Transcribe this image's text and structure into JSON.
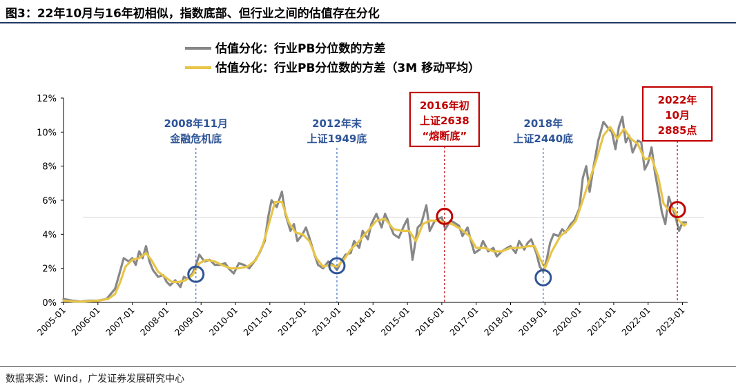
{
  "figure": {
    "title": "图3：22年10月与16年初相似，指数底部、但行业之间的估值存在分化",
    "source": "数据来源：Wind，广发证券发展研究中心"
  },
  "colors": {
    "series_raw": "#878787",
    "series_ma": "#e8c547",
    "guide_blue": "#4472c4",
    "label_blue": "#2e5597",
    "highlight_red": "#c00000",
    "reference_line": "#d9d9d9"
  },
  "chart_data": {
    "type": "line",
    "ylim": [
      0,
      12
    ],
    "y_ticks": [
      "0%",
      "2%",
      "4%",
      "6%",
      "8%",
      "10%",
      "12%"
    ],
    "x_ticks": [
      "2005-01",
      "2006-01",
      "2007-01",
      "2008-01",
      "2009-01",
      "2010-01",
      "2011-01",
      "2012-01",
      "2013-01",
      "2014-01",
      "2015-01",
      "2016-01",
      "2017-01",
      "2018-01",
      "2019-01",
      "2020-01",
      "2021-01",
      "2022-01",
      "2023-01"
    ],
    "xlim": [
      2005.0,
      2023.15
    ],
    "legend_position": "top-center",
    "grid": false,
    "reference_y": 5.0,
    "series": [
      {
        "name": "估值分化：行业PB分位数的方差",
        "key": "raw",
        "points": [
          [
            2005.0,
            0.2
          ],
          [
            2005.25,
            0.1
          ],
          [
            2005.5,
            0.05
          ],
          [
            2005.75,
            0.1
          ],
          [
            2006.0,
            0.1
          ],
          [
            2006.25,
            0.2
          ],
          [
            2006.5,
            0.8
          ],
          [
            2006.6,
            1.5
          ],
          [
            2006.75,
            2.6
          ],
          [
            2006.9,
            2.4
          ],
          [
            2007.0,
            2.6
          ],
          [
            2007.1,
            2.2
          ],
          [
            2007.2,
            3.0
          ],
          [
            2007.3,
            2.6
          ],
          [
            2007.4,
            3.3
          ],
          [
            2007.5,
            2.4
          ],
          [
            2007.6,
            1.9
          ],
          [
            2007.75,
            1.5
          ],
          [
            2007.9,
            1.6
          ],
          [
            2008.0,
            1.2
          ],
          [
            2008.1,
            1.0
          ],
          [
            2008.25,
            1.3
          ],
          [
            2008.4,
            0.9
          ],
          [
            2008.5,
            1.5
          ],
          [
            2008.6,
            1.4
          ],
          [
            2008.75,
            1.7
          ],
          [
            2008.85,
            2.2
          ],
          [
            2008.95,
            2.8
          ],
          [
            2009.1,
            2.4
          ],
          [
            2009.25,
            2.5
          ],
          [
            2009.4,
            2.2
          ],
          [
            2009.55,
            2.2
          ],
          [
            2009.7,
            2.3
          ],
          [
            2009.8,
            2.0
          ],
          [
            2009.95,
            1.7
          ],
          [
            2010.1,
            2.3
          ],
          [
            2010.25,
            2.2
          ],
          [
            2010.4,
            2.0
          ],
          [
            2010.55,
            2.4
          ],
          [
            2010.7,
            2.9
          ],
          [
            2010.85,
            3.6
          ],
          [
            2010.95,
            5.0
          ],
          [
            2011.05,
            6.0
          ],
          [
            2011.2,
            5.6
          ],
          [
            2011.35,
            6.5
          ],
          [
            2011.45,
            5.2
          ],
          [
            2011.6,
            4.2
          ],
          [
            2011.7,
            4.6
          ],
          [
            2011.8,
            3.6
          ],
          [
            2011.95,
            4.0
          ],
          [
            2012.05,
            4.4
          ],
          [
            2012.15,
            3.8
          ],
          [
            2012.3,
            2.8
          ],
          [
            2012.4,
            2.2
          ],
          [
            2012.55,
            2.0
          ],
          [
            2012.7,
            2.4
          ],
          [
            2012.85,
            2.2
          ],
          [
            2012.95,
            1.9
          ],
          [
            2013.05,
            2.3
          ],
          [
            2013.2,
            2.8
          ],
          [
            2013.35,
            2.9
          ],
          [
            2013.45,
            3.6
          ],
          [
            2013.6,
            3.2
          ],
          [
            2013.7,
            4.2
          ],
          [
            2013.85,
            3.7
          ],
          [
            2013.95,
            4.6
          ],
          [
            2014.1,
            5.2
          ],
          [
            2014.25,
            4.4
          ],
          [
            2014.35,
            5.2
          ],
          [
            2014.5,
            4.5
          ],
          [
            2014.6,
            4.0
          ],
          [
            2014.75,
            3.8
          ],
          [
            2014.9,
            4.5
          ],
          [
            2015.0,
            4.9
          ],
          [
            2015.1,
            3.4
          ],
          [
            2015.15,
            2.5
          ],
          [
            2015.3,
            4.4
          ],
          [
            2015.4,
            4.6
          ],
          [
            2015.55,
            5.7
          ],
          [
            2015.65,
            4.2
          ],
          [
            2015.8,
            4.8
          ],
          [
            2015.9,
            4.9
          ],
          [
            2016.0,
            5.0
          ],
          [
            2016.1,
            4.3
          ],
          [
            2016.25,
            4.8
          ],
          [
            2016.35,
            4.7
          ],
          [
            2016.5,
            4.5
          ],
          [
            2016.6,
            3.9
          ],
          [
            2016.75,
            4.4
          ],
          [
            2016.85,
            3.6
          ],
          [
            2016.95,
            2.9
          ],
          [
            2017.1,
            3.1
          ],
          [
            2017.2,
            3.6
          ],
          [
            2017.35,
            3.0
          ],
          [
            2017.5,
            3.2
          ],
          [
            2017.6,
            2.7
          ],
          [
            2017.75,
            3.0
          ],
          [
            2017.9,
            3.2
          ],
          [
            2018.0,
            3.3
          ],
          [
            2018.15,
            2.9
          ],
          [
            2018.25,
            3.6
          ],
          [
            2018.4,
            3.1
          ],
          [
            2018.5,
            3.5
          ],
          [
            2018.6,
            3.7
          ],
          [
            2018.75,
            2.9
          ],
          [
            2018.85,
            2.1
          ],
          [
            2018.95,
            1.8
          ],
          [
            2019.05,
            2.5
          ],
          [
            2019.15,
            3.5
          ],
          [
            2019.25,
            4.0
          ],
          [
            2019.4,
            3.9
          ],
          [
            2019.5,
            4.3
          ],
          [
            2019.6,
            4.1
          ],
          [
            2019.75,
            4.6
          ],
          [
            2019.85,
            4.8
          ],
          [
            2020.0,
            5.5
          ],
          [
            2020.1,
            7.3
          ],
          [
            2020.2,
            8.0
          ],
          [
            2020.3,
            6.5
          ],
          [
            2020.4,
            7.8
          ],
          [
            2020.55,
            9.5
          ],
          [
            2020.7,
            10.6
          ],
          [
            2020.85,
            10.2
          ],
          [
            2020.95,
            10.0
          ],
          [
            2021.05,
            9.0
          ],
          [
            2021.15,
            10.3
          ],
          [
            2021.25,
            10.9
          ],
          [
            2021.35,
            9.4
          ],
          [
            2021.45,
            9.8
          ],
          [
            2021.55,
            8.8
          ],
          [
            2021.7,
            9.5
          ],
          [
            2021.8,
            9.4
          ],
          [
            2021.9,
            7.8
          ],
          [
            2022.0,
            8.2
          ],
          [
            2022.1,
            9.1
          ],
          [
            2022.2,
            7.6
          ],
          [
            2022.3,
            6.5
          ],
          [
            2022.4,
            5.3
          ],
          [
            2022.5,
            4.6
          ],
          [
            2022.6,
            6.2
          ],
          [
            2022.7,
            5.6
          ],
          [
            2022.8,
            5.0
          ],
          [
            2022.9,
            4.2
          ],
          [
            2023.0,
            4.7
          ],
          [
            2023.1,
            4.7
          ]
        ]
      },
      {
        "name": "估值分化：行业PB分位数的方差（3M 移动平均）",
        "key": "ma",
        "points": [
          [
            2005.0,
            0.1
          ],
          [
            2005.3,
            0.05
          ],
          [
            2005.6,
            0.05
          ],
          [
            2006.0,
            0.1
          ],
          [
            2006.3,
            0.2
          ],
          [
            2006.5,
            0.5
          ],
          [
            2006.65,
            1.2
          ],
          [
            2006.8,
            2.1
          ],
          [
            2007.0,
            2.5
          ],
          [
            2007.2,
            2.6
          ],
          [
            2007.4,
            2.9
          ],
          [
            2007.55,
            2.5
          ],
          [
            2007.75,
            1.8
          ],
          [
            2007.95,
            1.5
          ],
          [
            2008.15,
            1.2
          ],
          [
            2008.35,
            1.2
          ],
          [
            2008.55,
            1.3
          ],
          [
            2008.75,
            1.6
          ],
          [
            2008.95,
            2.3
          ],
          [
            2009.15,
            2.5
          ],
          [
            2009.4,
            2.4
          ],
          [
            2009.6,
            2.2
          ],
          [
            2009.85,
            2.0
          ],
          [
            2010.1,
            2.0
          ],
          [
            2010.35,
            2.1
          ],
          [
            2010.6,
            2.5
          ],
          [
            2010.8,
            3.4
          ],
          [
            2011.0,
            4.8
          ],
          [
            2011.15,
            5.9
          ],
          [
            2011.35,
            5.9
          ],
          [
            2011.55,
            4.7
          ],
          [
            2011.75,
            4.1
          ],
          [
            2011.95,
            4.0
          ],
          [
            2012.15,
            3.6
          ],
          [
            2012.35,
            2.6
          ],
          [
            2012.55,
            2.1
          ],
          [
            2012.75,
            2.2
          ],
          [
            2012.95,
            2.1
          ],
          [
            2013.15,
            2.5
          ],
          [
            2013.35,
            3.1
          ],
          [
            2013.6,
            3.6
          ],
          [
            2013.85,
            4.2
          ],
          [
            2014.1,
            4.8
          ],
          [
            2014.35,
            4.9
          ],
          [
            2014.6,
            4.3
          ],
          [
            2014.85,
            4.2
          ],
          [
            2015.05,
            4.2
          ],
          [
            2015.25,
            3.6
          ],
          [
            2015.45,
            4.6
          ],
          [
            2015.65,
            4.8
          ],
          [
            2015.9,
            4.8
          ],
          [
            2016.05,
            4.7
          ],
          [
            2016.3,
            4.6
          ],
          [
            2016.55,
            4.3
          ],
          [
            2016.8,
            3.9
          ],
          [
            2017.0,
            3.2
          ],
          [
            2017.25,
            3.2
          ],
          [
            2017.5,
            3.0
          ],
          [
            2017.75,
            3.0
          ],
          [
            2018.0,
            3.2
          ],
          [
            2018.25,
            3.2
          ],
          [
            2018.5,
            3.3
          ],
          [
            2018.7,
            3.3
          ],
          [
            2018.85,
            2.6
          ],
          [
            2019.0,
            2.0
          ],
          [
            2019.2,
            3.0
          ],
          [
            2019.45,
            3.9
          ],
          [
            2019.7,
            4.3
          ],
          [
            2019.9,
            4.8
          ],
          [
            2020.1,
            6.0
          ],
          [
            2020.3,
            7.2
          ],
          [
            2020.5,
            8.4
          ],
          [
            2020.7,
            9.8
          ],
          [
            2020.9,
            10.3
          ],
          [
            2021.1,
            9.6
          ],
          [
            2021.3,
            10.2
          ],
          [
            2021.5,
            9.6
          ],
          [
            2021.7,
            9.3
          ],
          [
            2021.9,
            8.4
          ],
          [
            2022.1,
            8.5
          ],
          [
            2022.3,
            7.3
          ],
          [
            2022.45,
            5.8
          ],
          [
            2022.6,
            5.4
          ],
          [
            2022.75,
            5.5
          ],
          [
            2022.9,
            4.8
          ],
          [
            2023.05,
            4.5
          ],
          [
            2023.1,
            4.6
          ]
        ]
      }
    ],
    "events": [
      {
        "x": 2008.85,
        "marker_y": 1.65,
        "color_key": "blue",
        "boxed": false,
        "line_from": 1.0,
        "label": [
          "2008年11月",
          "金融危机底"
        ]
      },
      {
        "x": 2012.95,
        "marker_y": 2.15,
        "color_key": "blue",
        "boxed": false,
        "line_from": 1.6,
        "label": [
          "2012年末",
          "上证1949底"
        ]
      },
      {
        "x": 2016.08,
        "marker_y": 5.05,
        "color_key": "red",
        "boxed": true,
        "line_from": 4.6,
        "label": [
          "2016年初",
          "上证2638",
          "“熔断底”"
        ]
      },
      {
        "x": 2018.95,
        "marker_y": 1.45,
        "color_key": "blue",
        "boxed": false,
        "line_from": 0.9,
        "label": [
          "2018年",
          "上证2440底"
        ]
      },
      {
        "x": 2022.85,
        "marker_y": 5.45,
        "color_key": "red",
        "boxed": true,
        "line_from": 5.0,
        "label": [
          "2022年",
          "10月",
          "2885点"
        ]
      }
    ]
  }
}
